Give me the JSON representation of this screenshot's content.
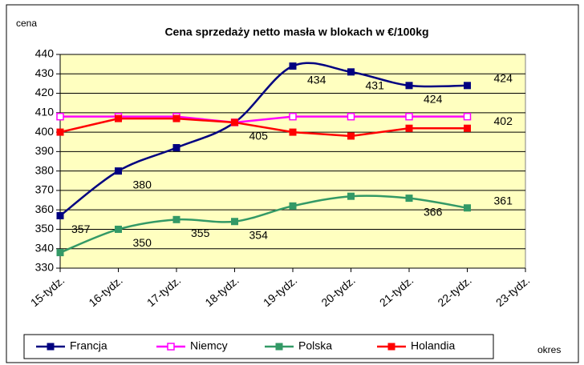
{
  "chart_data": {
    "type": "line",
    "title": "Cena sprzedaży netto masła w blokach w €/100kg",
    "y_label": "cena",
    "x_label": "okres",
    "categories": [
      "15-tydz.",
      "16-tydz.",
      "17-tydz.",
      "18-tydz.",
      "19-tydz.",
      "20-tydz.",
      "21-tydz.",
      "22-tydz.",
      "23-tydz."
    ],
    "ylim": [
      330,
      440
    ],
    "yticks": [
      330,
      340,
      350,
      360,
      370,
      380,
      390,
      400,
      410,
      420,
      430,
      440
    ],
    "grid": true,
    "legend": "bottom",
    "series": [
      {
        "name": "Francja",
        "color": "#000080",
        "marker": "square",
        "smooth": true,
        "values": [
          357,
          380,
          392,
          405,
          434,
          431,
          424,
          424,
          null
        ],
        "value_labels": [
          357,
          380,
          null,
          405,
          434,
          431,
          424,
          424,
          null
        ]
      },
      {
        "name": "Niemcy",
        "color": "#ff00ff",
        "marker": "open-square",
        "smooth": false,
        "values": [
          408,
          408,
          408,
          405,
          408,
          408,
          408,
          408,
          null
        ]
      },
      {
        "name": "Polska",
        "color": "#339966",
        "marker": "square",
        "smooth": true,
        "values": [
          338,
          350,
          355,
          354,
          362,
          367,
          366,
          361,
          null
        ],
        "value_labels": [
          null,
          350,
          355,
          354,
          null,
          null,
          366,
          361,
          null
        ]
      },
      {
        "name": "Holandia",
        "color": "#ff0000",
        "marker": "square",
        "smooth": false,
        "values": [
          400,
          407,
          407,
          405,
          400,
          398,
          402,
          402,
          null
        ],
        "value_labels": [
          null,
          null,
          null,
          null,
          null,
          null,
          null,
          402,
          null
        ]
      }
    ]
  }
}
